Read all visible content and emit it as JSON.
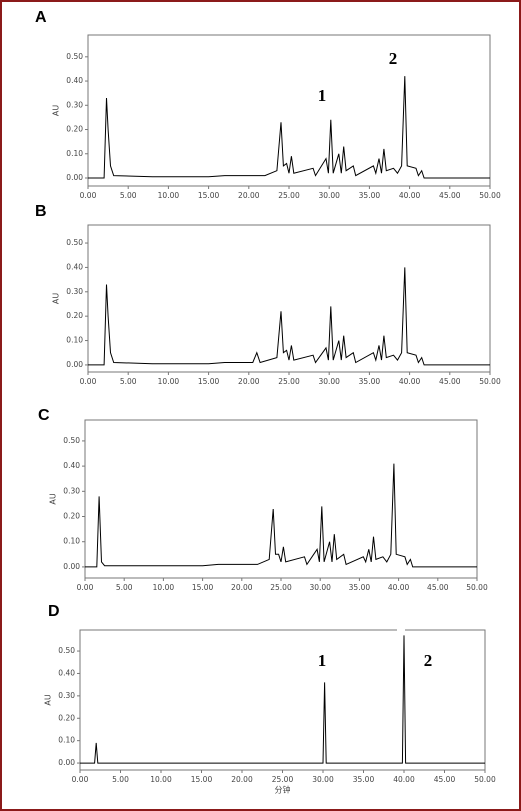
{
  "chart_data": [
    {
      "type": "line",
      "title": "A",
      "y_label": "AU",
      "color": "#000000",
      "x": [
        0,
        2.0,
        2.3,
        2.5,
        2.8,
        3.2,
        8,
        15,
        17,
        22,
        23.5,
        24,
        24.3,
        24.7,
        25,
        25.3,
        25.6,
        28,
        28.3,
        29.6,
        29.9,
        30.2,
        30.5,
        31.2,
        31.5,
        31.8,
        32.1,
        33,
        33.3,
        35.5,
        35.8,
        36.2,
        36.5,
        36.8,
        37.1,
        38,
        38.5,
        39,
        39.4,
        39.7,
        40.8,
        41.1,
        41.5,
        41.8,
        50
      ],
      "values": [
        0,
        0,
        0.33,
        0.2,
        0.05,
        0.01,
        0.005,
        0.005,
        0.01,
        0.01,
        0.03,
        0.23,
        0.05,
        0.06,
        0.02,
        0.09,
        0.02,
        0.04,
        0.01,
        0.08,
        0.02,
        0.24,
        0.02,
        0.1,
        0.02,
        0.13,
        0.03,
        0.05,
        0.01,
        0.05,
        0.02,
        0.08,
        0.02,
        0.12,
        0.03,
        0.04,
        0.02,
        0.05,
        0.42,
        0.05,
        0.04,
        0.01,
        0.03,
        0,
        0
      ],
      "xlim": [
        0,
        50
      ],
      "ylim": [
        -0.033,
        0.59
      ],
      "xticks": [
        {
          "value": 0,
          "label": "0.00"
        },
        {
          "value": 5,
          "label": "5.00"
        },
        {
          "value": 10,
          "label": "10.00"
        },
        {
          "value": 15,
          "label": "15.00"
        },
        {
          "value": 20,
          "label": "20.00"
        },
        {
          "value": 25,
          "label": "25.00"
        },
        {
          "value": 30,
          "label": "30.00"
        },
        {
          "value": 35,
          "label": "35.00"
        },
        {
          "value": 40,
          "label": "40.00"
        },
        {
          "value": 45,
          "label": "45.00"
        },
        {
          "value": 50,
          "label": "50.00"
        }
      ],
      "yticks": [
        {
          "value": 0,
          "label": "0.00"
        },
        {
          "value": 0.1,
          "label": "0.10"
        },
        {
          "value": 0.2,
          "label": "0.20"
        },
        {
          "value": 0.3,
          "label": "0.30"
        },
        {
          "value": 0.4,
          "label": "0.40"
        },
        {
          "value": 0.5,
          "label": "0.50"
        }
      ],
      "annotations": [
        "1",
        "2"
      ]
    },
    {
      "type": "line",
      "title": "B",
      "y_label": "AU",
      "color": "#000000",
      "x": [
        0,
        2.0,
        2.3,
        2.5,
        2.8,
        3.2,
        8,
        15,
        17,
        20.5,
        21,
        21.4,
        23.5,
        24,
        24.3,
        24.7,
        25,
        25.3,
        25.6,
        28,
        28.3,
        29.6,
        29.9,
        30.2,
        30.5,
        31.2,
        31.5,
        31.8,
        32.1,
        33,
        33.3,
        35.5,
        35.8,
        36.2,
        36.5,
        36.8,
        37.1,
        38,
        38.5,
        39,
        39.4,
        39.7,
        40.8,
        41.1,
        41.5,
        41.8,
        50
      ],
      "values": [
        0,
        0,
        0.33,
        0.2,
        0.05,
        0.01,
        0.005,
        0.005,
        0.01,
        0.01,
        0.05,
        0.01,
        0.03,
        0.22,
        0.05,
        0.06,
        0.02,
        0.08,
        0.02,
        0.04,
        0.01,
        0.07,
        0.02,
        0.24,
        0.02,
        0.1,
        0.02,
        0.12,
        0.03,
        0.05,
        0.01,
        0.05,
        0.02,
        0.08,
        0.02,
        0.12,
        0.03,
        0.04,
        0.02,
        0.05,
        0.4,
        0.05,
        0.04,
        0.01,
        0.03,
        0,
        0
      ],
      "xlim": [
        0,
        50
      ],
      "ylim": [
        -0.029,
        0.574
      ],
      "xticks": [
        {
          "value": 0,
          "label": "0.00"
        },
        {
          "value": 5,
          "label": "5.00"
        },
        {
          "value": 10,
          "label": "10.00"
        },
        {
          "value": 15,
          "label": "15.00"
        },
        {
          "value": 20,
          "label": "20.00"
        },
        {
          "value": 25,
          "label": "25.00"
        },
        {
          "value": 30,
          "label": "30.00"
        },
        {
          "value": 35,
          "label": "35.00"
        },
        {
          "value": 40,
          "label": "40.00"
        },
        {
          "value": 45,
          "label": "45.00"
        },
        {
          "value": 50,
          "label": "50.00"
        }
      ],
      "yticks": [
        {
          "value": 0,
          "label": "0.00"
        },
        {
          "value": 0.1,
          "label": "0.10"
        },
        {
          "value": 0.2,
          "label": "0.20"
        },
        {
          "value": 0.3,
          "label": "0.30"
        },
        {
          "value": 0.4,
          "label": "0.40"
        },
        {
          "value": 0.5,
          "label": "0.50"
        }
      ]
    },
    {
      "type": "line",
      "title": "C",
      "y_label": "AU",
      "color": "#000000",
      "x": [
        0,
        1.5,
        1.8,
        2.1,
        2.5,
        8,
        15,
        17,
        22,
        23.5,
        24,
        24.3,
        24.7,
        25,
        25.3,
        25.6,
        28,
        28.3,
        29.6,
        29.9,
        30.2,
        30.5,
        31.2,
        31.5,
        31.8,
        32.1,
        33,
        33.3,
        35.5,
        35.8,
        36.2,
        36.5,
        36.8,
        37.1,
        38,
        38.5,
        39,
        39.4,
        39.7,
        40.8,
        41.1,
        41.5,
        41.8,
        50
      ],
      "values": [
        0,
        0,
        0.28,
        0.02,
        0.005,
        0.005,
        0.005,
        0.01,
        0.01,
        0.03,
        0.23,
        0.05,
        0.05,
        0.02,
        0.08,
        0.02,
        0.04,
        0.01,
        0.07,
        0.02,
        0.24,
        0.02,
        0.1,
        0.02,
        0.13,
        0.03,
        0.05,
        0.01,
        0.04,
        0.02,
        0.07,
        0.02,
        0.12,
        0.03,
        0.04,
        0.02,
        0.05,
        0.41,
        0.05,
        0.04,
        0.01,
        0.03,
        0,
        0
      ],
      "xlim": [
        0,
        50
      ],
      "ylim": [
        -0.044,
        0.583
      ],
      "xticks": [
        {
          "value": 0,
          "label": "0.00"
        },
        {
          "value": 5,
          "label": "5.00"
        },
        {
          "value": 10,
          "label": "10.00"
        },
        {
          "value": 15,
          "label": "15.00"
        },
        {
          "value": 20,
          "label": "20.00"
        },
        {
          "value": 25,
          "label": "25.00"
        },
        {
          "value": 30,
          "label": "30.00"
        },
        {
          "value": 35,
          "label": "35.00"
        },
        {
          "value": 40,
          "label": "40.00"
        },
        {
          "value": 45,
          "label": "45.00"
        },
        {
          "value": 50,
          "label": "50.00"
        }
      ],
      "yticks": [
        {
          "value": 0,
          "label": "0.00"
        },
        {
          "value": 0.1,
          "label": "0.10"
        },
        {
          "value": 0.2,
          "label": "0.20"
        },
        {
          "value": 0.3,
          "label": "0.30"
        },
        {
          "value": 0.4,
          "label": "0.40"
        },
        {
          "value": 0.5,
          "label": "0.50"
        }
      ]
    },
    {
      "type": "line",
      "title": "D",
      "y_label": "AU",
      "x_label": "分钟",
      "color": "#000000",
      "x": [
        0,
        1.8,
        2.0,
        2.2,
        30,
        30.2,
        30.4,
        39.8,
        40.0,
        40.2,
        50
      ],
      "values": [
        0,
        0,
        0.09,
        0,
        0,
        0.36,
        0,
        0,
        0.57,
        0,
        0
      ],
      "xlim": [
        0,
        50
      ],
      "ylim": [
        -0.031,
        0.594
      ],
      "xticks": [
        {
          "value": 0,
          "label": "0.00"
        },
        {
          "value": 5,
          "label": "5.00"
        },
        {
          "value": 10,
          "label": "10.00"
        },
        {
          "value": 15,
          "label": "15.00"
        },
        {
          "value": 20,
          "label": "20.00"
        },
        {
          "value": 25,
          "label": "25.00"
        },
        {
          "value": 30,
          "label": "30.00"
        },
        {
          "value": 35,
          "label": "35.00"
        },
        {
          "value": 40,
          "label": "40.00"
        },
        {
          "value": 45,
          "label": "45.00"
        },
        {
          "value": 50,
          "label": "50.00"
        }
      ],
      "yticks": [
        {
          "value": 0,
          "label": "0.00"
        },
        {
          "value": 0.1,
          "label": "0.10"
        },
        {
          "value": 0.2,
          "label": "0.20"
        },
        {
          "value": 0.3,
          "label": "0.30"
        },
        {
          "value": 0.4,
          "label": "0.40"
        },
        {
          "value": 0.5,
          "label": "0.50"
        }
      ],
      "annotations": [
        "1",
        "2"
      ]
    }
  ]
}
